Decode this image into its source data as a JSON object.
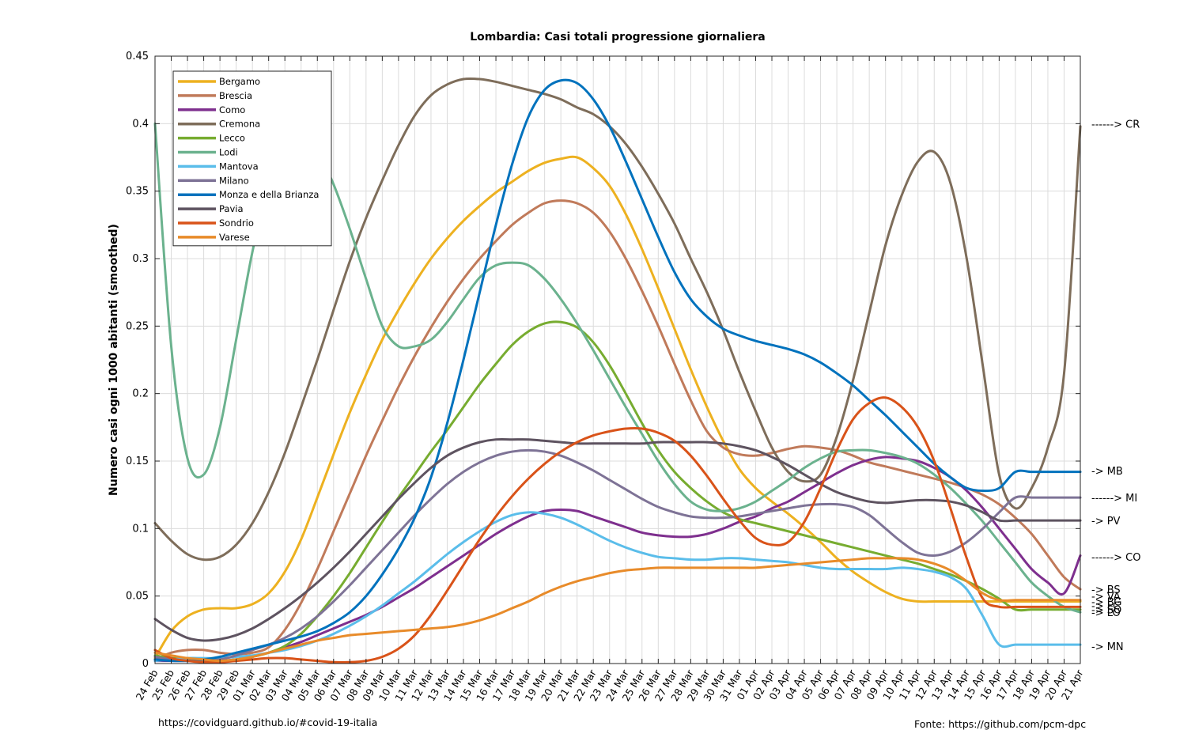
{
  "chart_data": {
    "type": "line",
    "title": "Lombardia: Casi totali progressione giornaliera",
    "ylabel": "Numero casi ogni 1000 abitanti (smoothed)",
    "xlabel": "",
    "ylim": [
      0,
      0.45
    ],
    "yticks": [
      0,
      0.05,
      0.1,
      0.15,
      0.2,
      0.25,
      0.3,
      0.35,
      0.4,
      0.45
    ],
    "ytick_labels": [
      "0",
      "0.05",
      "0.1",
      "0.15",
      "0.2",
      "0.25",
      "0.3",
      "0.35",
      "0.4",
      "0.45"
    ],
    "grid": true,
    "legend_position": "top-left",
    "categories": [
      "24 Feb",
      "25 Feb",
      "26 Feb",
      "27 Feb",
      "28 Feb",
      "29 Feb",
      "01 Mar",
      "02 Mar",
      "03 Mar",
      "04 Mar",
      "05 Mar",
      "06 Mar",
      "07 Mar",
      "08 Mar",
      "09 Mar",
      "10 Mar",
      "11 Mar",
      "12 Mar",
      "13 Mar",
      "14 Mar",
      "15 Mar",
      "16 Mar",
      "17 Mar",
      "18 Mar",
      "19 Mar",
      "20 Mar",
      "21 Mar",
      "22 Mar",
      "23 Mar",
      "24 Mar",
      "25 Mar",
      "26 Mar",
      "27 Mar",
      "28 Mar",
      "29 Mar",
      "30 Mar",
      "31 Mar",
      "01 Apr",
      "02 Apr",
      "03 Apr",
      "04 Apr",
      "05 Apr",
      "06 Apr",
      "07 Apr",
      "08 Apr",
      "09 Apr",
      "10 Apr",
      "11 Apr",
      "12 Apr",
      "13 Apr",
      "14 Apr",
      "15 Apr",
      "16 Apr",
      "17 Apr",
      "18 Apr",
      "19 Apr",
      "20 Apr",
      "21 Apr"
    ],
    "series": [
      {
        "name": "Bergamo",
        "color": "#EDB120",
        "values": [
          0.004,
          0.024,
          0.035,
          0.04,
          0.041,
          0.041,
          0.044,
          0.052,
          0.068,
          0.092,
          0.123,
          0.155,
          0.186,
          0.214,
          0.24,
          0.262,
          0.282,
          0.3,
          0.315,
          0.328,
          0.339,
          0.349,
          0.357,
          0.365,
          0.371,
          0.374,
          0.375,
          0.367,
          0.354,
          0.333,
          0.307,
          0.278,
          0.248,
          0.218,
          0.19,
          0.165,
          0.144,
          0.13,
          0.12,
          0.111,
          0.101,
          0.09,
          0.078,
          0.068,
          0.06,
          0.053,
          0.048,
          0.046,
          0.046,
          0.046,
          0.046,
          0.046,
          0.046,
          0.046,
          0.046,
          0.046,
          0.046,
          0.046
        ]
      },
      {
        "name": "Brescia",
        "color": "#C07A5A",
        "values": [
          0.003,
          0.008,
          0.01,
          0.01,
          0.008,
          0.007,
          0.008,
          0.012,
          0.025,
          0.045,
          0.07,
          0.098,
          0.126,
          0.154,
          0.18,
          0.205,
          0.228,
          0.249,
          0.268,
          0.285,
          0.3,
          0.313,
          0.325,
          0.334,
          0.341,
          0.343,
          0.341,
          0.334,
          0.32,
          0.3,
          0.276,
          0.25,
          0.222,
          0.195,
          0.172,
          0.16,
          0.155,
          0.154,
          0.156,
          0.159,
          0.161,
          0.16,
          0.158,
          0.154,
          0.149,
          0.146,
          0.143,
          0.14,
          0.137,
          0.134,
          0.13,
          0.125,
          0.118,
          0.108,
          0.096,
          0.08,
          0.064,
          0.055
        ]
      },
      {
        "name": "Como",
        "color": "#7E2F8E",
        "values": [
          0.002,
          0.002,
          0.002,
          0.002,
          0.002,
          0.003,
          0.005,
          0.008,
          0.012,
          0.016,
          0.021,
          0.026,
          0.031,
          0.036,
          0.042,
          0.049,
          0.056,
          0.064,
          0.072,
          0.08,
          0.088,
          0.096,
          0.103,
          0.109,
          0.113,
          0.114,
          0.113,
          0.109,
          0.105,
          0.101,
          0.097,
          0.095,
          0.094,
          0.094,
          0.096,
          0.1,
          0.105,
          0.109,
          0.115,
          0.12,
          0.127,
          0.134,
          0.141,
          0.147,
          0.151,
          0.153,
          0.152,
          0.15,
          0.145,
          0.138,
          0.128,
          0.115,
          0.1,
          0.085,
          0.07,
          0.06,
          0.052,
          0.08
        ]
      },
      {
        "name": "Cremona",
        "color": "#7E6D5A",
        "values": [
          0.104,
          0.091,
          0.081,
          0.077,
          0.079,
          0.088,
          0.104,
          0.127,
          0.156,
          0.19,
          0.225,
          0.262,
          0.298,
          0.33,
          0.358,
          0.384,
          0.406,
          0.421,
          0.429,
          0.433,
          0.433,
          0.431,
          0.428,
          0.425,
          0.422,
          0.418,
          0.412,
          0.407,
          0.398,
          0.385,
          0.368,
          0.348,
          0.326,
          0.3,
          0.275,
          0.247,
          0.216,
          0.187,
          0.16,
          0.142,
          0.135,
          0.14,
          0.168,
          0.21,
          0.26,
          0.31,
          0.347,
          0.372,
          0.379,
          0.356,
          0.3,
          0.22,
          0.14,
          0.115,
          0.13,
          0.16,
          0.215,
          0.398
        ]
      },
      {
        "name": "Lecco",
        "color": "#77AC30",
        "values": [
          0.006,
          0.004,
          0.004,
          0.002,
          0.002,
          0.003,
          0.005,
          0.008,
          0.013,
          0.022,
          0.035,
          0.05,
          0.067,
          0.086,
          0.105,
          0.123,
          0.14,
          0.157,
          0.173,
          0.19,
          0.207,
          0.222,
          0.236,
          0.246,
          0.252,
          0.253,
          0.249,
          0.238,
          0.221,
          0.2,
          0.178,
          0.158,
          0.142,
          0.13,
          0.12,
          0.112,
          0.107,
          0.104,
          0.101,
          0.098,
          0.095,
          0.092,
          0.089,
          0.086,
          0.083,
          0.08,
          0.077,
          0.074,
          0.07,
          0.066,
          0.061,
          0.055,
          0.048,
          0.04,
          0.04,
          0.04,
          0.04,
          0.04
        ]
      },
      {
        "name": "Lodi",
        "color": "#6BB28E",
        "values": [
          0.4,
          0.235,
          0.152,
          0.14,
          0.175,
          0.24,
          0.305,
          0.355,
          0.385,
          0.395,
          0.38,
          0.355,
          0.322,
          0.285,
          0.25,
          0.235,
          0.235,
          0.24,
          0.253,
          0.27,
          0.286,
          0.295,
          0.297,
          0.295,
          0.285,
          0.27,
          0.252,
          0.232,
          0.211,
          0.19,
          0.17,
          0.15,
          0.133,
          0.12,
          0.114,
          0.113,
          0.115,
          0.12,
          0.128,
          0.136,
          0.145,
          0.152,
          0.157,
          0.158,
          0.158,
          0.156,
          0.153,
          0.148,
          0.14,
          0.13,
          0.118,
          0.105,
          0.09,
          0.075,
          0.06,
          0.05,
          0.042,
          0.038
        ]
      },
      {
        "name": "Mantova",
        "color": "#5ABDEA",
        "values": [
          0.002,
          0.003,
          0.004,
          0.004,
          0.004,
          0.005,
          0.006,
          0.008,
          0.01,
          0.013,
          0.017,
          0.022,
          0.028,
          0.035,
          0.043,
          0.052,
          0.061,
          0.071,
          0.081,
          0.09,
          0.098,
          0.105,
          0.11,
          0.112,
          0.111,
          0.108,
          0.103,
          0.097,
          0.091,
          0.086,
          0.082,
          0.079,
          0.078,
          0.077,
          0.077,
          0.078,
          0.078,
          0.077,
          0.076,
          0.075,
          0.073,
          0.071,
          0.07,
          0.07,
          0.07,
          0.07,
          0.071,
          0.07,
          0.068,
          0.064,
          0.055,
          0.035,
          0.014,
          0.014,
          0.014,
          0.014,
          0.014,
          0.014
        ]
      },
      {
        "name": "Milano",
        "color": "#7E7396",
        "values": [
          0.005,
          0.003,
          0.002,
          0.002,
          0.003,
          0.006,
          0.01,
          0.014,
          0.019,
          0.026,
          0.035,
          0.046,
          0.058,
          0.071,
          0.084,
          0.097,
          0.11,
          0.122,
          0.133,
          0.142,
          0.149,
          0.154,
          0.157,
          0.158,
          0.157,
          0.154,
          0.149,
          0.143,
          0.136,
          0.129,
          0.122,
          0.116,
          0.112,
          0.109,
          0.108,
          0.108,
          0.109,
          0.111,
          0.113,
          0.115,
          0.117,
          0.118,
          0.118,
          0.116,
          0.11,
          0.1,
          0.09,
          0.082,
          0.08,
          0.083,
          0.09,
          0.1,
          0.112,
          0.123,
          0.123,
          0.123,
          0.123,
          0.123
        ]
      },
      {
        "name": "Monza e della Brianza",
        "color": "#0072BD",
        "values": [
          0.003,
          0.002,
          0.002,
          0.003,
          0.005,
          0.008,
          0.011,
          0.014,
          0.017,
          0.02,
          0.024,
          0.03,
          0.038,
          0.05,
          0.066,
          0.085,
          0.108,
          0.138,
          0.178,
          0.225,
          0.275,
          0.325,
          0.37,
          0.405,
          0.425,
          0.432,
          0.43,
          0.418,
          0.398,
          0.372,
          0.344,
          0.316,
          0.29,
          0.27,
          0.257,
          0.248,
          0.243,
          0.239,
          0.236,
          0.233,
          0.229,
          0.223,
          0.215,
          0.206,
          0.195,
          0.184,
          0.172,
          0.16,
          0.148,
          0.138,
          0.13,
          0.128,
          0.13,
          0.142,
          0.142,
          0.142,
          0.142,
          0.142
        ]
      },
      {
        "name": "Pavia",
        "color": "#5E5360",
        "values": [
          0.033,
          0.025,
          0.019,
          0.017,
          0.018,
          0.021,
          0.026,
          0.033,
          0.041,
          0.05,
          0.06,
          0.071,
          0.083,
          0.096,
          0.109,
          0.122,
          0.134,
          0.145,
          0.154,
          0.16,
          0.164,
          0.166,
          0.166,
          0.166,
          0.165,
          0.164,
          0.163,
          0.163,
          0.163,
          0.163,
          0.163,
          0.164,
          0.164,
          0.164,
          0.164,
          0.163,
          0.161,
          0.158,
          0.153,
          0.147,
          0.14,
          0.133,
          0.127,
          0.123,
          0.12,
          0.119,
          0.12,
          0.121,
          0.121,
          0.12,
          0.117,
          0.112,
          0.106,
          0.106,
          0.106,
          0.106,
          0.106,
          0.106
        ]
      },
      {
        "name": "Sondrio",
        "color": "#D95319",
        "values": [
          0.01,
          0.004,
          0.002,
          0.001,
          0.001,
          0.002,
          0.003,
          0.004,
          0.004,
          0.003,
          0.002,
          0.001,
          0.001,
          0.002,
          0.005,
          0.011,
          0.021,
          0.036,
          0.054,
          0.073,
          0.092,
          0.109,
          0.124,
          0.137,
          0.148,
          0.157,
          0.164,
          0.169,
          0.172,
          0.174,
          0.174,
          0.171,
          0.165,
          0.154,
          0.139,
          0.122,
          0.106,
          0.093,
          0.088,
          0.09,
          0.105,
          0.13,
          0.158,
          0.181,
          0.193,
          0.197,
          0.19,
          0.175,
          0.15,
          0.115,
          0.078,
          0.048,
          0.042,
          0.042,
          0.042,
          0.042,
          0.042,
          0.042
        ]
      },
      {
        "name": "Varese",
        "color": "#E88B2A",
        "values": [
          0.008,
          0.006,
          0.004,
          0.003,
          0.002,
          0.003,
          0.005,
          0.008,
          0.011,
          0.014,
          0.017,
          0.019,
          0.021,
          0.022,
          0.023,
          0.024,
          0.025,
          0.026,
          0.027,
          0.029,
          0.032,
          0.036,
          0.041,
          0.046,
          0.052,
          0.057,
          0.061,
          0.064,
          0.067,
          0.069,
          0.07,
          0.071,
          0.071,
          0.071,
          0.071,
          0.071,
          0.071,
          0.071,
          0.072,
          0.073,
          0.074,
          0.075,
          0.076,
          0.077,
          0.078,
          0.078,
          0.078,
          0.077,
          0.074,
          0.069,
          0.061,
          0.052,
          0.047,
          0.047,
          0.047,
          0.047,
          0.047,
          0.047
        ]
      }
    ],
    "annotations": [
      {
        "text": "------> CR",
        "y": 0.4
      },
      {
        "text": "-> MB",
        "y": 0.143
      },
      {
        "text": "------> MI",
        "y": 0.123
      },
      {
        "text": "-> PV",
        "y": 0.106
      },
      {
        "text": "------> CO",
        "y": 0.079
      },
      {
        "text": "-> BS",
        "y": 0.055
      },
      {
        "text": "-> VA",
        "y": 0.05
      },
      {
        "text": "-> BG",
        "y": 0.046
      },
      {
        "text": "-> LC",
        "y": 0.043
      },
      {
        "text": "-> SO",
        "y": 0.04
      },
      {
        "text": "-> LO",
        "y": 0.038
      },
      {
        "text": "-> MN",
        "y": 0.013
      }
    ]
  },
  "footer": {
    "left": "https://covidguard.github.io/#covid-19-italia",
    "right": "Fonte: https://github.com/pcm-dpc"
  }
}
